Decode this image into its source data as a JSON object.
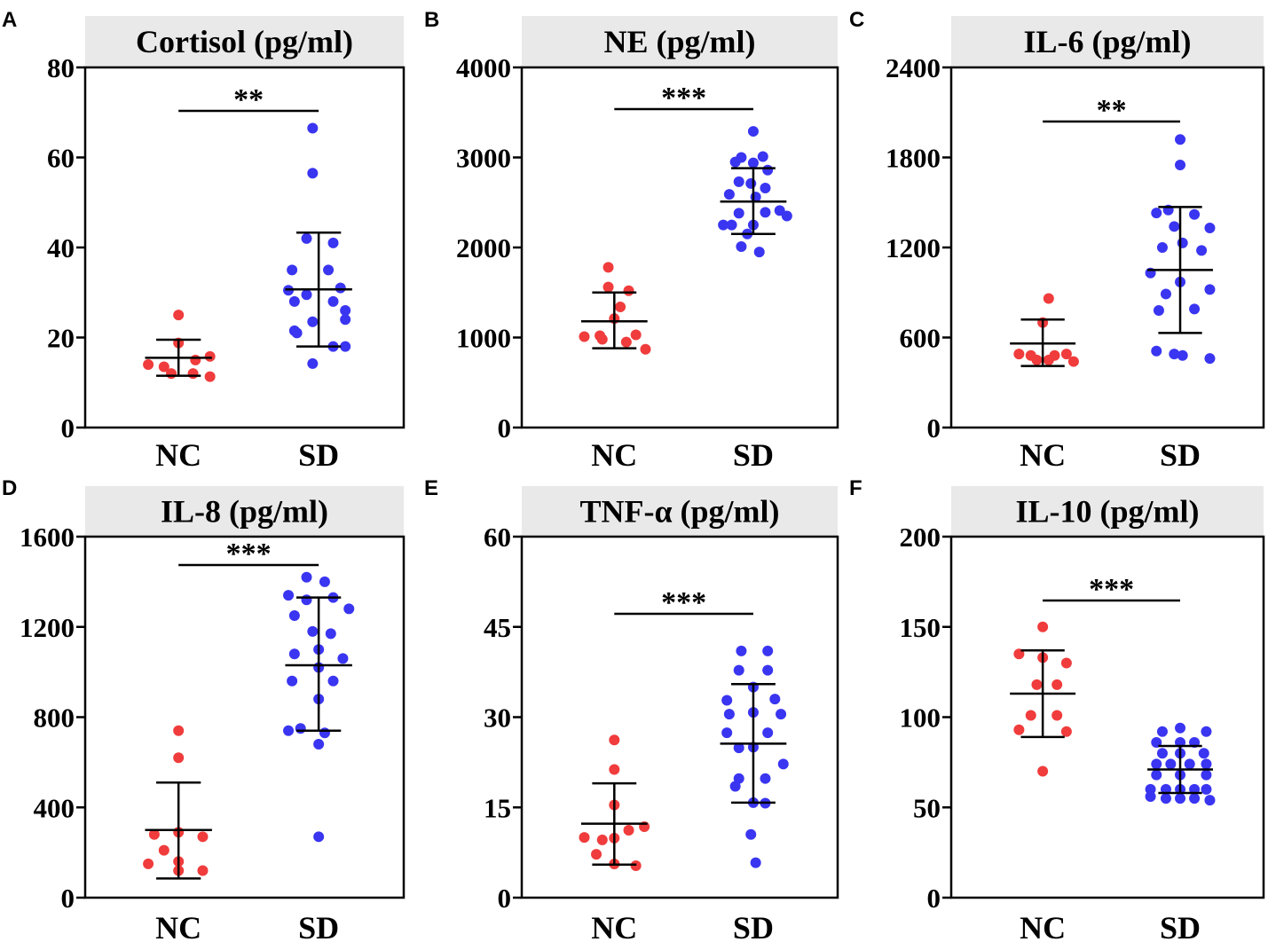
{
  "chart_data": [
    {
      "panel": "A",
      "type": "scatter",
      "title": "Cortisol (pg/ml)",
      "ylim": [
        0,
        80
      ],
      "yticks": [
        0,
        20,
        40,
        60,
        80
      ],
      "categories": [
        "NC",
        "SD"
      ],
      "significance": "**",
      "series": [
        {
          "name": "NC",
          "color": "#f03c3c",
          "mean": 15.5,
          "upper": 19.5,
          "lower": 11.5,
          "points": [
            [
              -0.25,
              14.0
            ],
            [
              -0.12,
              13.5
            ],
            [
              0.0,
              25.0
            ],
            [
              0.0,
              18.8
            ],
            [
              0.14,
              15.0
            ],
            [
              0.26,
              15.8
            ],
            [
              -0.06,
              12.0
            ],
            [
              0.12,
              12.0
            ],
            [
              0.26,
              11.3
            ]
          ]
        },
        {
          "name": "SD",
          "color": "#3a35f0",
          "mean": 30.7,
          "upper": 43.3,
          "lower": 18.0,
          "points": [
            [
              -0.05,
              66.5
            ],
            [
              -0.05,
              56.5
            ],
            [
              -0.1,
              42.0
            ],
            [
              0.12,
              41.0
            ],
            [
              -0.22,
              35.0
            ],
            [
              0.08,
              35.0
            ],
            [
              -0.25,
              30.5
            ],
            [
              0.18,
              31.0
            ],
            [
              -0.1,
              29.5
            ],
            [
              -0.2,
              28.0
            ],
            [
              0.12,
              28.0
            ],
            [
              0.22,
              26.0
            ],
            [
              0.22,
              24.0
            ],
            [
              -0.05,
              23.5
            ],
            [
              -0.2,
              21.5
            ],
            [
              -0.18,
              21.0
            ],
            [
              0.12,
              18.0
            ],
            [
              0.22,
              18.0
            ],
            [
              -0.05,
              14.2
            ]
          ]
        }
      ]
    },
    {
      "panel": "B",
      "type": "scatter",
      "title": "NE (pg/ml)",
      "ylim": [
        0,
        4000
      ],
      "yticks": [
        0,
        1000,
        2000,
        3000,
        4000
      ],
      "categories": [
        "NC",
        "SD"
      ],
      "significance": "***",
      "series": [
        {
          "name": "NC",
          "color": "#f03c3c",
          "mean": 1180,
          "upper": 1500,
          "lower": 880,
          "points": [
            [
              -0.05,
              1780
            ],
            [
              -0.05,
              1560
            ],
            [
              0.12,
              1520
            ],
            [
              0.05,
              1340
            ],
            [
              0.0,
              1210
            ],
            [
              -0.25,
              1010
            ],
            [
              -0.12,
              1020
            ],
            [
              0.18,
              1030
            ],
            [
              -0.1,
              980
            ],
            [
              0.1,
              950
            ],
            [
              0.26,
              870
            ]
          ]
        },
        {
          "name": "SD",
          "color": "#3a35f0",
          "mean": 2510,
          "upper": 2880,
          "lower": 2150,
          "points": [
            [
              0.0,
              3290
            ],
            [
              -0.1,
              3000
            ],
            [
              0.08,
              3010
            ],
            [
              -0.15,
              2950
            ],
            [
              0.0,
              2940
            ],
            [
              0.12,
              2860
            ],
            [
              -0.12,
              2730
            ],
            [
              -0.02,
              2710
            ],
            [
              0.1,
              2660
            ],
            [
              -0.2,
              2590
            ],
            [
              0.02,
              2560
            ],
            [
              0.22,
              2410
            ],
            [
              0.1,
              2390
            ],
            [
              -0.12,
              2380
            ],
            [
              0.28,
              2350
            ],
            [
              -0.25,
              2250
            ],
            [
              -0.18,
              2250
            ],
            [
              0.0,
              2250
            ],
            [
              -0.05,
              2150
            ],
            [
              -0.1,
              2010
            ],
            [
              0.05,
              1950
            ]
          ]
        }
      ]
    },
    {
      "panel": "C",
      "type": "scatter",
      "title": "IL-6 (pg/ml)",
      "ylim": [
        0,
        2400
      ],
      "yticks": [
        0,
        600,
        1200,
        1800,
        2400
      ],
      "categories": [
        "NC",
        "SD"
      ],
      "significance": "**",
      "series": [
        {
          "name": "NC",
          "color": "#f03c3c",
          "mean": 560,
          "upper": 720,
          "lower": 410,
          "points": [
            [
              0.05,
              860
            ],
            [
              0.0,
              700
            ],
            [
              -0.2,
              490
            ],
            [
              -0.1,
              480
            ],
            [
              0.1,
              480
            ],
            [
              0.2,
              490
            ],
            [
              -0.05,
              450
            ],
            [
              0.05,
              450
            ],
            [
              0.26,
              440
            ]
          ]
        },
        {
          "name": "SD",
          "color": "#3a35f0",
          "mean": 1050,
          "upper": 1470,
          "lower": 630,
          "points": [
            [
              0.0,
              1920
            ],
            [
              0.0,
              1750
            ],
            [
              -0.1,
              1450
            ],
            [
              -0.2,
              1430
            ],
            [
              0.12,
              1420
            ],
            [
              -0.05,
              1340
            ],
            [
              0.25,
              1330
            ],
            [
              0.02,
              1230
            ],
            [
              -0.15,
              1200
            ],
            [
              0.18,
              1180
            ],
            [
              -0.25,
              1030
            ],
            [
              0.0,
              970
            ],
            [
              0.25,
              920
            ],
            [
              -0.12,
              890
            ],
            [
              -0.18,
              780
            ],
            [
              0.12,
              790
            ],
            [
              -0.2,
              510
            ],
            [
              -0.05,
              490
            ],
            [
              0.02,
              480
            ],
            [
              0.25,
              460
            ]
          ]
        }
      ]
    },
    {
      "panel": "D",
      "type": "scatter",
      "title": "IL-8 (pg/ml)",
      "ylim": [
        0,
        1600
      ],
      "yticks": [
        0,
        400,
        800,
        1200,
        1600
      ],
      "categories": [
        "NC",
        "SD"
      ],
      "significance": "***",
      "series": [
        {
          "name": "NC",
          "color": "#f03c3c",
          "mean": 300,
          "upper": 510,
          "lower": 85,
          "points": [
            [
              0.0,
              740
            ],
            [
              0.0,
              620
            ],
            [
              -0.2,
              280
            ],
            [
              0.0,
              290
            ],
            [
              0.2,
              270
            ],
            [
              -0.12,
              210
            ],
            [
              0.0,
              160
            ],
            [
              -0.25,
              150
            ],
            [
              0.2,
              120
            ],
            [
              0.0,
              120
            ]
          ]
        },
        {
          "name": "SD",
          "color": "#3a35f0",
          "mean": 1030,
          "upper": 1330,
          "lower": 740,
          "points": [
            [
              -0.1,
              1420
            ],
            [
              0.05,
              1400
            ],
            [
              -0.25,
              1340
            ],
            [
              -0.1,
              1320
            ],
            [
              0.12,
              1330
            ],
            [
              0.25,
              1280
            ],
            [
              -0.2,
              1250
            ],
            [
              -0.05,
              1180
            ],
            [
              0.1,
              1170
            ],
            [
              0.0,
              1100
            ],
            [
              -0.2,
              1080
            ],
            [
              0.2,
              1060
            ],
            [
              0.0,
              1020
            ],
            [
              -0.22,
              960
            ],
            [
              0.12,
              960
            ],
            [
              0.0,
              880
            ],
            [
              -0.15,
              750
            ],
            [
              -0.25,
              740
            ],
            [
              0.05,
              730
            ],
            [
              0.0,
              680
            ],
            [
              0.0,
              270
            ]
          ]
        }
      ]
    },
    {
      "panel": "E",
      "type": "scatter",
      "title": "TNF-α (pg/ml)",
      "ylim": [
        0,
        60
      ],
      "yticks": [
        0,
        15,
        30,
        45,
        60
      ],
      "categories": [
        "NC",
        "SD"
      ],
      "significance": "***",
      "series": [
        {
          "name": "NC",
          "color": "#f03c3c",
          "mean": 12.3,
          "upper": 19.0,
          "lower": 5.5,
          "points": [
            [
              0.0,
              26.2
            ],
            [
              0.0,
              21.3
            ],
            [
              0.0,
              15.4
            ],
            [
              0.25,
              11.8
            ],
            [
              0.12,
              11.2
            ],
            [
              -0.25,
              10.0
            ],
            [
              -0.1,
              9.6
            ],
            [
              0.0,
              9.9
            ],
            [
              -0.15,
              7.2
            ],
            [
              0.0,
              5.6
            ],
            [
              0.18,
              5.3
            ]
          ]
        },
        {
          "name": "SD",
          "color": "#3a35f0",
          "mean": 25.6,
          "upper": 35.5,
          "lower": 15.8,
          "points": [
            [
              -0.1,
              41.0
            ],
            [
              0.12,
              41.0
            ],
            [
              -0.12,
              37.8
            ],
            [
              0.12,
              37.8
            ],
            [
              0.0,
              35.0
            ],
            [
              -0.22,
              32.8
            ],
            [
              0.18,
              33.0
            ],
            [
              0.0,
              30.8
            ],
            [
              -0.2,
              30.5
            ],
            [
              0.23,
              30.5
            ],
            [
              -0.22,
              27.4
            ],
            [
              0.12,
              27.4
            ],
            [
              0.0,
              25.0
            ],
            [
              -0.12,
              24.9
            ],
            [
              0.25,
              22.2
            ],
            [
              -0.12,
              19.8
            ],
            [
              0.1,
              19.8
            ],
            [
              -0.15,
              18.5
            ],
            [
              0.0,
              15.8
            ],
            [
              0.1,
              15.7
            ],
            [
              -0.02,
              10.5
            ],
            [
              0.02,
              5.8
            ]
          ]
        }
      ]
    },
    {
      "panel": "F",
      "type": "scatter",
      "title": "IL-10 (pg/ml)",
      "ylim": [
        0,
        200
      ],
      "yticks": [
        0,
        50,
        100,
        150,
        200
      ],
      "categories": [
        "NC",
        "SD"
      ],
      "significance": "***",
      "series": [
        {
          "name": "NC",
          "color": "#f03c3c",
          "mean": 113,
          "upper": 137,
          "lower": 89,
          "points": [
            [
              0.0,
              150
            ],
            [
              -0.2,
              135
            ],
            [
              0.0,
              133
            ],
            [
              0.2,
              130
            ],
            [
              -0.05,
              118
            ],
            [
              0.12,
              118
            ],
            [
              -0.1,
              101
            ],
            [
              0.12,
              101
            ],
            [
              -0.2,
              93
            ],
            [
              0.2,
              92
            ],
            [
              0.0,
              70
            ]
          ]
        },
        {
          "name": "SD",
          "color": "#3a35f0",
          "mean": 71,
          "upper": 84,
          "lower": 58,
          "points": [
            [
              0.0,
              94
            ],
            [
              -0.15,
              92
            ],
            [
              0.22,
              92
            ],
            [
              -0.2,
              86
            ],
            [
              0.0,
              86
            ],
            [
              0.12,
              86
            ],
            [
              -0.15,
              80
            ],
            [
              0.0,
              80
            ],
            [
              0.2,
              80
            ],
            [
              -0.2,
              74
            ],
            [
              -0.08,
              74
            ],
            [
              0.08,
              74
            ],
            [
              0.22,
              74
            ],
            [
              -0.2,
              68
            ],
            [
              0.0,
              68
            ],
            [
              0.22,
              68
            ],
            [
              -0.25,
              60
            ],
            [
              -0.12,
              60
            ],
            [
              0.0,
              60
            ],
            [
              0.12,
              60
            ],
            [
              0.22,
              60
            ],
            [
              -0.25,
              56
            ],
            [
              -0.12,
              55
            ],
            [
              0.0,
              55
            ],
            [
              0.12,
              55
            ],
            [
              0.25,
              54
            ]
          ]
        }
      ]
    }
  ]
}
